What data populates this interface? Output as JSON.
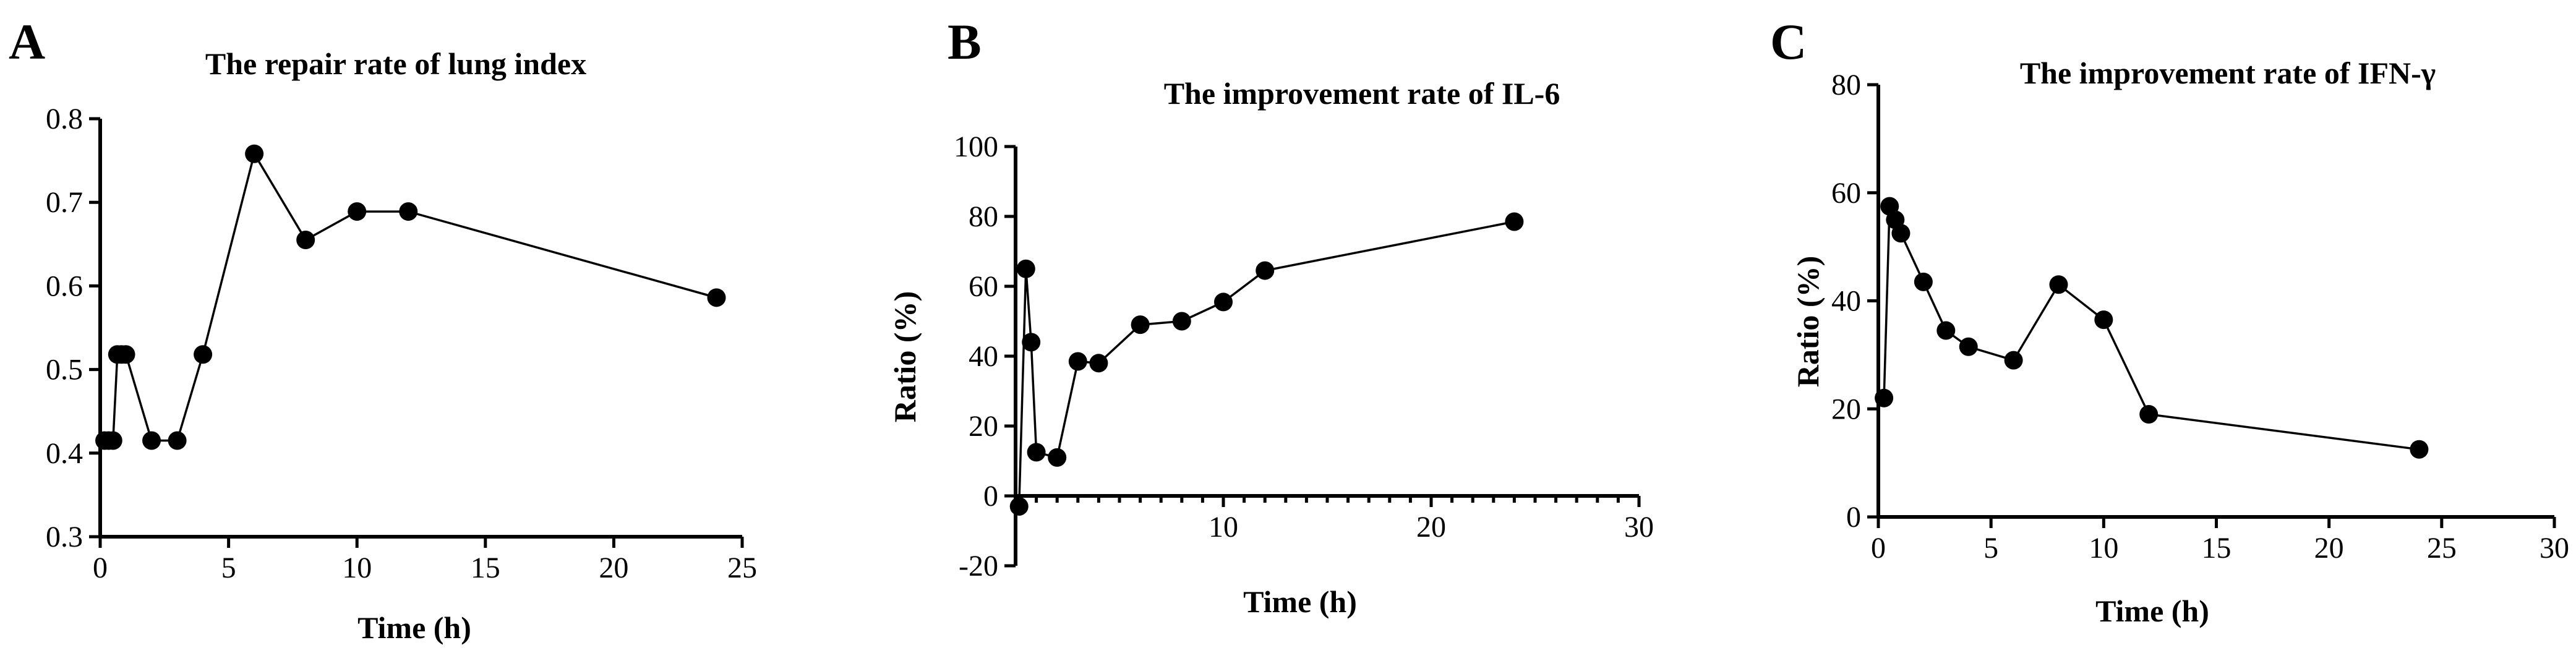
{
  "chart_data": [
    {
      "type": "line",
      "panel": "A",
      "title": "The repair rate of lung index",
      "xlabel": "Time (h)",
      "ylabel": "",
      "xlim": [
        0,
        25
      ],
      "ylim": [
        0.3,
        0.8
      ],
      "x_ticks": [
        0,
        5,
        10,
        15,
        20,
        25
      ],
      "y_ticks": [
        0.3,
        0.4,
        0.5,
        0.6,
        0.7,
        0.8
      ],
      "x_tick_labels": [
        "0",
        "5",
        "10",
        "15",
        "20",
        "25"
      ],
      "y_tick_labels": [
        "0.3",
        "0.4",
        "0.5",
        "0.6",
        "0.7",
        "0.8"
      ],
      "x_minor_step": 0,
      "x": [
        0.17,
        0.33,
        0.5,
        0.67,
        0.83,
        1,
        2,
        3,
        4,
        6,
        8,
        10,
        12,
        24
      ],
      "y": [
        0.415,
        0.415,
        0.415,
        0.518,
        0.518,
        0.518,
        0.415,
        0.415,
        0.518,
        0.758,
        0.655,
        0.689,
        0.689,
        0.586
      ]
    },
    {
      "type": "line",
      "panel": "B",
      "title": "The improvement rate of IL-6",
      "xlabel": "Time (h)",
      "ylabel": "Ratio (%)",
      "xlim": [
        0,
        30
      ],
      "ylim": [
        -20,
        100
      ],
      "x_ticks": [
        10,
        20,
        30
      ],
      "y_ticks": [
        -20,
        0,
        20,
        40,
        60,
        80,
        100
      ],
      "x_tick_labels": [
        "10",
        "20",
        "30"
      ],
      "y_tick_labels": [
        "-20",
        "0",
        "20",
        "40",
        "60",
        "80",
        "100"
      ],
      "x_minor_step": 1,
      "x": [
        0.17,
        0.5,
        0.75,
        1,
        2,
        3,
        4,
        6,
        8,
        10,
        12,
        24
      ],
      "y": [
        -3,
        65,
        44,
        12.5,
        11,
        38.5,
        38,
        49,
        50,
        55.5,
        64.5,
        78.5
      ]
    },
    {
      "type": "line",
      "panel": "C",
      "title": "The improvement rate of IFN-γ",
      "xlabel": "Time (h)",
      "ylabel": "Ratio (%)",
      "xlim": [
        0,
        30
      ],
      "ylim": [
        0,
        80
      ],
      "x_ticks": [
        0,
        5,
        10,
        15,
        20,
        25,
        30
      ],
      "y_ticks": [
        0,
        20,
        40,
        60,
        80
      ],
      "x_tick_labels": [
        "0",
        "5",
        "10",
        "15",
        "20",
        "25",
        "30"
      ],
      "y_tick_labels": [
        "0",
        "20",
        "40",
        "60",
        "80"
      ],
      "x_minor_step": 0,
      "x": [
        0.25,
        0.5,
        0.75,
        1,
        2,
        3,
        4,
        6,
        8,
        10,
        12,
        24
      ],
      "y": [
        22,
        57.5,
        55,
        52.5,
        43.5,
        34.5,
        31.5,
        29,
        43,
        36.5,
        19,
        12.5
      ]
    }
  ]
}
